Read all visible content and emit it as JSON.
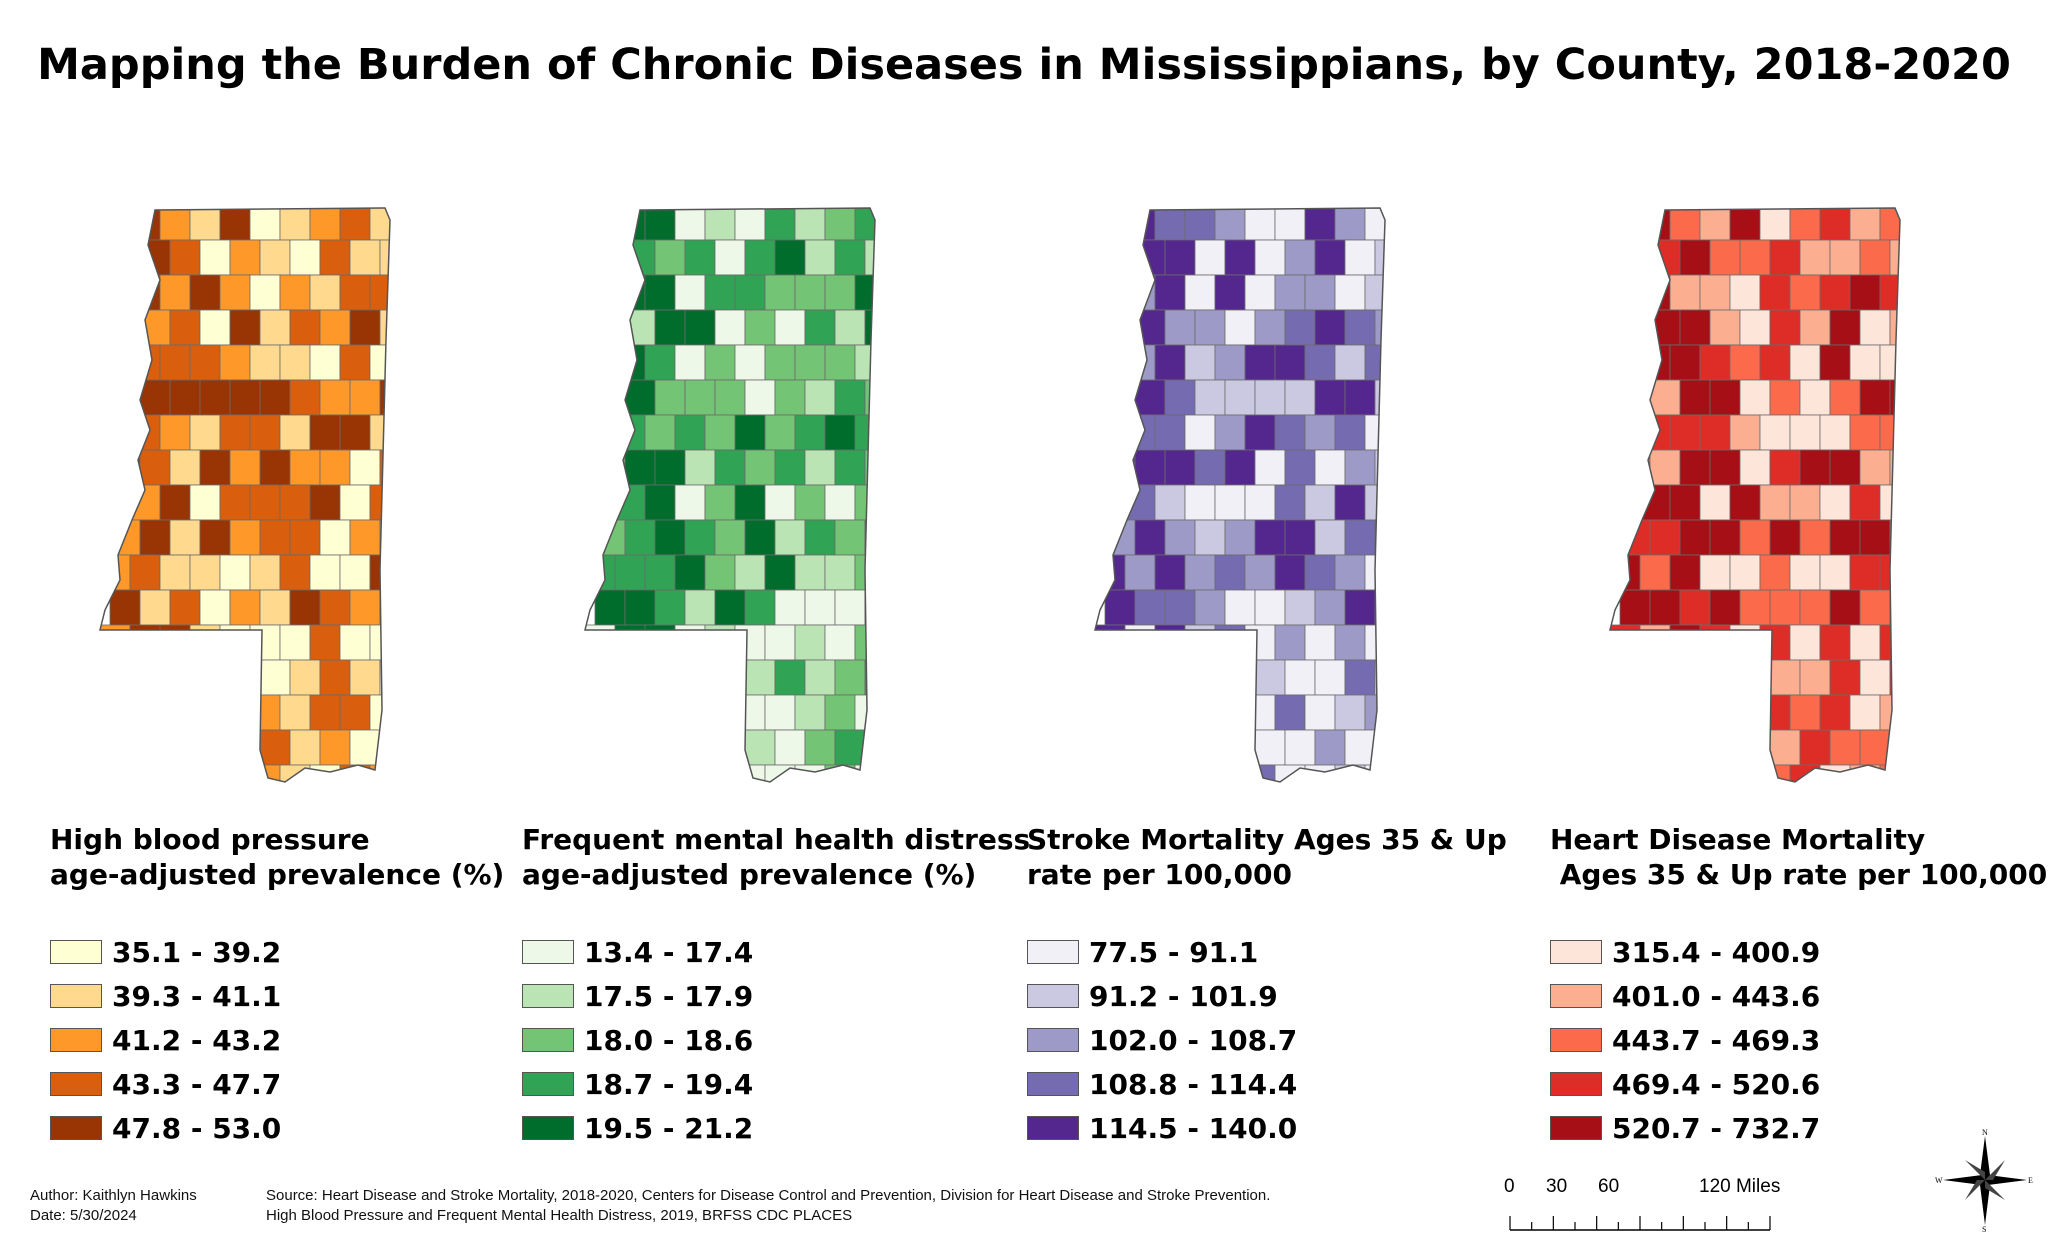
{
  "title": "Mapping the Burden of Chronic Diseases in Mississippians, by County, 2018-2020",
  "maps": [
    {
      "name": "high-blood-pressure",
      "legend_title": [
        "High blood pressure",
        "age-adjusted prevalence (%)"
      ],
      "classes": [
        {
          "label": "35.1 - 39.2",
          "color": "#ffffd4"
        },
        {
          "label": "39.3 - 41.1",
          "color": "#fed98e"
        },
        {
          "label": "41.2 - 43.2",
          "color": "#fe9929"
        },
        {
          "label": "43.3 - 47.7",
          "color": "#d95f0e"
        },
        {
          "label": "47.8 - 53.0",
          "color": "#993404"
        }
      ]
    },
    {
      "name": "mental-health-distress",
      "legend_title": [
        "Frequent mental health distress",
        "age-adjusted prevalence (%)"
      ],
      "classes": [
        {
          "label": "13.4 - 17.4",
          "color": "#edf8e9"
        },
        {
          "label": "17.5 - 17.9",
          "color": "#bae4b3"
        },
        {
          "label": "18.0 - 18.6",
          "color": "#74c476"
        },
        {
          "label": "18.7 - 19.4",
          "color": "#31a354"
        },
        {
          "label": "19.5 - 21.2",
          "color": "#006d2c"
        }
      ]
    },
    {
      "name": "stroke-mortality",
      "legend_title": [
        "Stroke Mortality Ages 35 & Up",
        "rate per 100,000"
      ],
      "classes": [
        {
          "label": "77.5 - 91.1",
          "color": "#f2f0f7"
        },
        {
          "label": "91.2 - 101.9",
          "color": "#cbc9e2"
        },
        {
          "label": "102.0 - 108.7",
          "color": "#9e9ac8"
        },
        {
          "label": "108.8 - 114.4",
          "color": "#756bb1"
        },
        {
          "label": "114.5 - 140.0",
          "color": "#54278f"
        }
      ]
    },
    {
      "name": "heart-disease-mortality",
      "legend_title": [
        "Heart Disease Mortality",
        " Ages 35 & Up rate per 100,000"
      ],
      "classes": [
        {
          "label": "315.4 - 400.9",
          "color": "#fee5d9"
        },
        {
          "label": "401.0 - 443.6",
          "color": "#fcae91"
        },
        {
          "label": "443.7 - 469.3",
          "color": "#fb6a4a"
        },
        {
          "label": "469.4 - 520.6",
          "color": "#de2d26"
        },
        {
          "label": "520.7 - 732.7",
          "color": "#a50f15"
        }
      ]
    }
  ],
  "author": "Author: Kaithlyn Hawkins",
  "date": "Date: 5/30/2024",
  "source_line1": "Source: Heart Disease and Stroke Mortality, 2018-2020, Centers for Disease Control and Prevention, Division for Heart Disease and Stroke Prevention.",
  "source_line2": "High Blood Pressure and Frequent Mental Health Distress, 2019, BRFSS CDC PLACES",
  "scale": {
    "ticks": [
      "0",
      "30",
      "60",
      "120 Miles"
    ]
  },
  "compass": {
    "n": "N",
    "s": "S",
    "e": "E",
    "w": "W"
  }
}
